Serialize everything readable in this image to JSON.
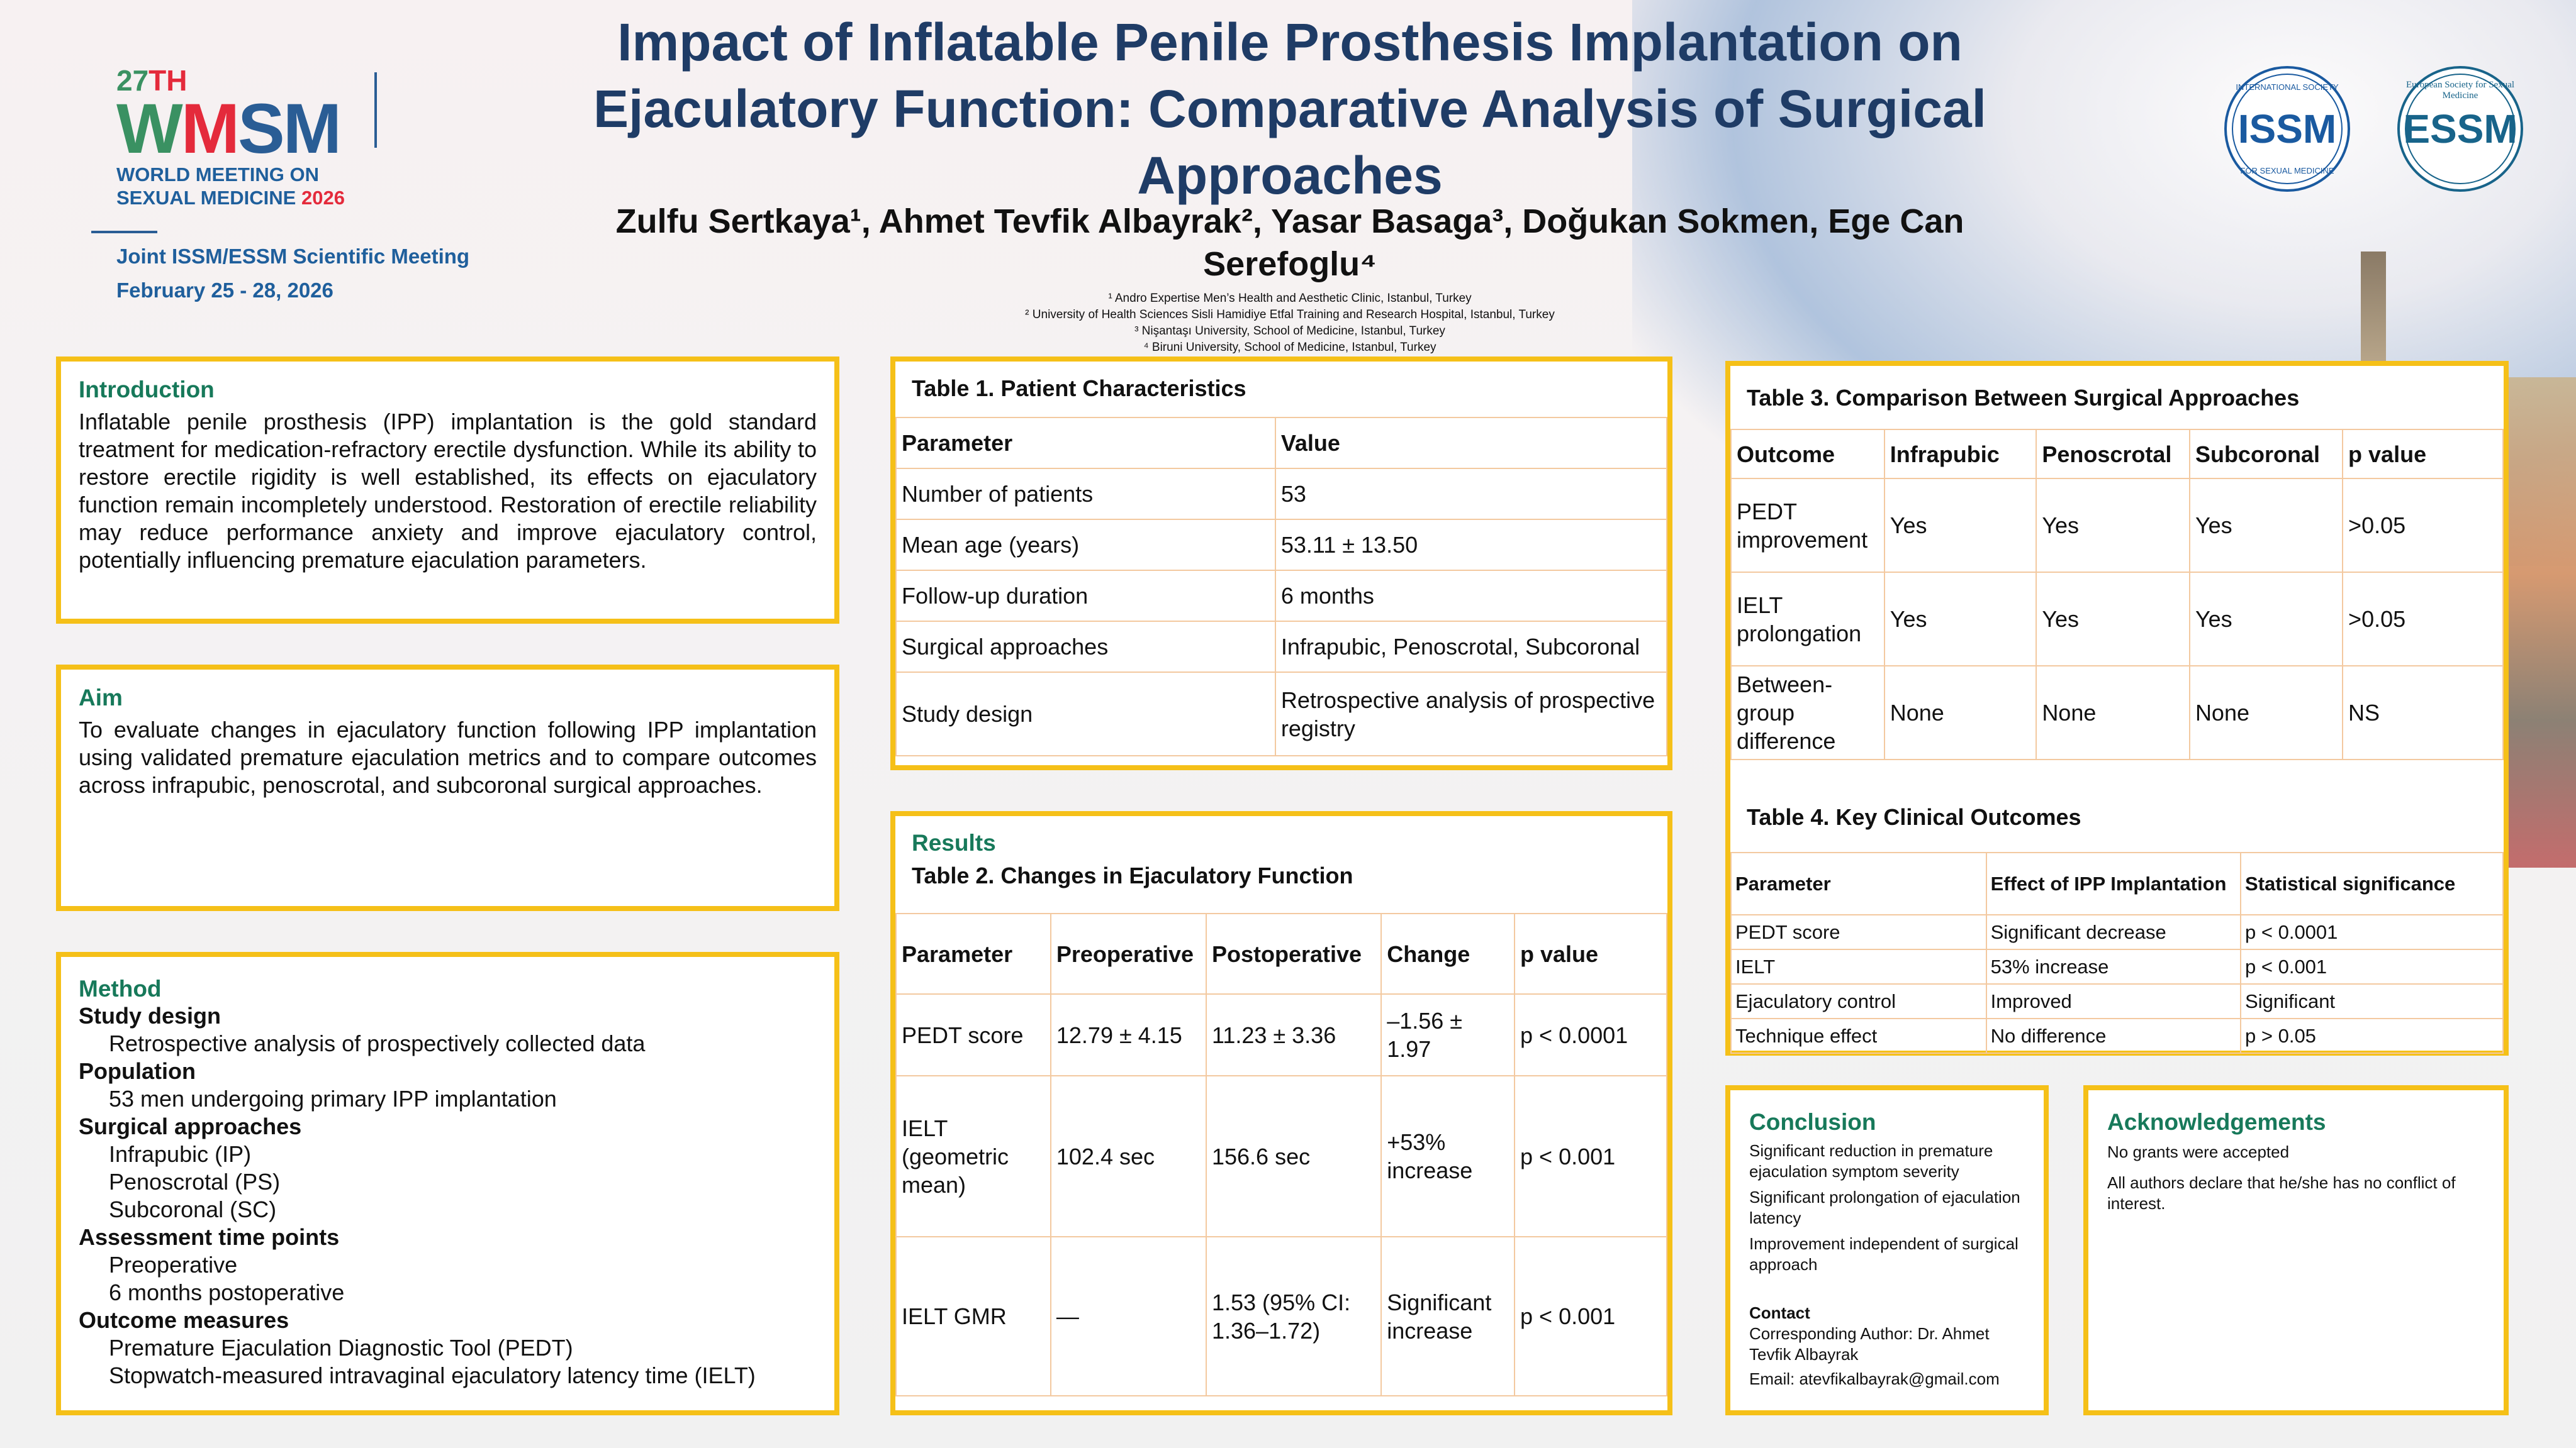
{
  "colors": {
    "accent": "#f5c018",
    "heading": "#17795a",
    "title": "#1f3c66"
  },
  "logo": {
    "edition_num": "27",
    "edition_suffix": "TH",
    "w": "W",
    "m": "M",
    "sm": "SM",
    "line1": "WORLD MEETING ON",
    "line2": "SEXUAL MEDICINE",
    "year": "2026",
    "joint": "Joint ISSM/ESSM Scientific Meeting",
    "dates": "February 25 - 28, 2026"
  },
  "seals": {
    "issm": "ISSM",
    "issm_top": "INTERNATIONAL SOCIETY",
    "issm_bottom": "FOR SEXUAL MEDICINE",
    "essm": "ESSM",
    "essm_ring": "European Society for Sexual Medicine"
  },
  "title": "Impact of Inflatable Penile Prosthesis Implantation on Ejaculatory Function: Comparative Analysis of Surgical Approaches",
  "authors": "Zulfu Sertkaya¹, Ahmet Tevfik Albayrak², Yasar Basaga³, Doğukan Sokmen, Ege Can Serefoglu⁴",
  "affiliations": [
    "¹ Andro Expertise Men’s Health and Aesthetic Clinic, Istanbul, Turkey",
    "² University of Health Sciences Sisli Hamidiye Etfal Training and Research Hospital, Istanbul, Turkey",
    "³ Nişantaşı University, School of Medicine, Istanbul, Turkey",
    "⁴ Biruni University, School of Medicine, Istanbul, Turkey"
  ],
  "intro": {
    "heading": "Introduction",
    "text": "Inflatable penile prosthesis (IPP) implantation is the gold standard treatment for medication-refractory erectile dysfunction. While its ability to restore erectile rigidity is well established, its effects on ejaculatory function remain incompletely understood. Restoration of erectile reliability may reduce performance anxiety and improve ejaculatory control, potentially influencing premature ejaculation parameters."
  },
  "aim": {
    "heading": "Aim",
    "text": "To evaluate changes in ejaculatory function following IPP implantation using validated premature ejaculation metrics and to compare outcomes across infrapubic, penoscrotal, and subcoronal surgical approaches."
  },
  "method": {
    "heading": "Method",
    "sections": [
      {
        "title": "Study design",
        "items": [
          "Retrospective analysis of prospectively collected data"
        ]
      },
      {
        "title": "Population",
        "items": [
          "53 men undergoing primary IPP implantation"
        ]
      },
      {
        "title": "Surgical approaches",
        "items": [
          "Infrapubic (IP)",
          "Penoscrotal (PS)",
          "Subcoronal (SC)"
        ]
      },
      {
        "title": "Assessment time points",
        "items": [
          "Preoperative",
          "6 months postoperative"
        ]
      },
      {
        "title": "Outcome measures",
        "items": [
          "Premature Ejaculation Diagnostic Tool (PEDT)",
          "Stopwatch-measured intravaginal ejaculatory latency time (IELT)"
        ]
      }
    ]
  },
  "table1": {
    "title": "Table 1. Patient Characteristics",
    "headers": [
      "Parameter",
      "Value"
    ],
    "rows": [
      [
        "Number of patients",
        "53"
      ],
      [
        "Mean age (years)",
        "53.11 ± 13.50"
      ],
      [
        "Follow-up duration",
        "6 months"
      ],
      [
        "Surgical approaches",
        "Infrapubic, Penoscrotal, Subcoronal"
      ],
      [
        "Study design",
        "Retrospective analysis of prospective registry"
      ]
    ]
  },
  "results": {
    "heading": "Results",
    "title": "Table 2. Changes in Ejaculatory Function",
    "headers": [
      "Parameter",
      "Preoperative",
      "Postoperative",
      "Change",
      "p value"
    ],
    "rows": [
      [
        "PEDT score",
        "12.79 ± 4.15",
        "11.23 ± 3.36",
        "–1.56 ± 1.97",
        "p < 0.0001"
      ],
      [
        "IELT (geometric mean)",
        "102.4 sec",
        "156.6 sec",
        "+53% increase",
        "p < 0.001"
      ],
      [
        "IELT GMR",
        "—",
        "1.53 (95% CI: 1.36–1.72)",
        "Significant increase",
        "p < 0.001"
      ]
    ]
  },
  "table3": {
    "title": "Table 3. Comparison Between Surgical Approaches",
    "headers": [
      "Outcome",
      "Infrapubic",
      "Penoscrotal",
      "Subcoronal",
      "p value"
    ],
    "rows": [
      [
        "PEDT improvement",
        "Yes",
        "Yes",
        "Yes",
        ">0.05"
      ],
      [
        "IELT prolongation",
        "Yes",
        "Yes",
        "Yes",
        ">0.05"
      ],
      [
        "Between-group difference",
        "None",
        "None",
        "None",
        "NS"
      ]
    ]
  },
  "table4": {
    "title": "Table 4. Key Clinical Outcomes",
    "headers": [
      "Parameter",
      "Effect of IPP Implantation",
      "Statistical significance"
    ],
    "rows": [
      [
        "PEDT score",
        "Significant decrease",
        "p < 0.0001"
      ],
      [
        "IELT",
        "53% increase",
        "p < 0.001"
      ],
      [
        "Ejaculatory control",
        "Improved",
        "Significant"
      ],
      [
        "Technique effect",
        "No difference",
        "p > 0.05"
      ]
    ]
  },
  "conclusion": {
    "heading": "Conclusion",
    "points": [
      "Significant reduction in premature ejaculation symptom severity",
      "Significant prolongation of ejaculation latency",
      "Improvement independent of surgical approach"
    ],
    "contact_heading": "Contact",
    "contact_author": "Corresponding Author: Dr. Ahmet Tevfik Albayrak",
    "contact_email": "Email: atevfikalbayrak@gmail.com"
  },
  "ack": {
    "heading": "Acknowledgements",
    "lines": [
      "No grants were accepted",
      "All authors declare that he/she has no conflict of interest."
    ]
  }
}
